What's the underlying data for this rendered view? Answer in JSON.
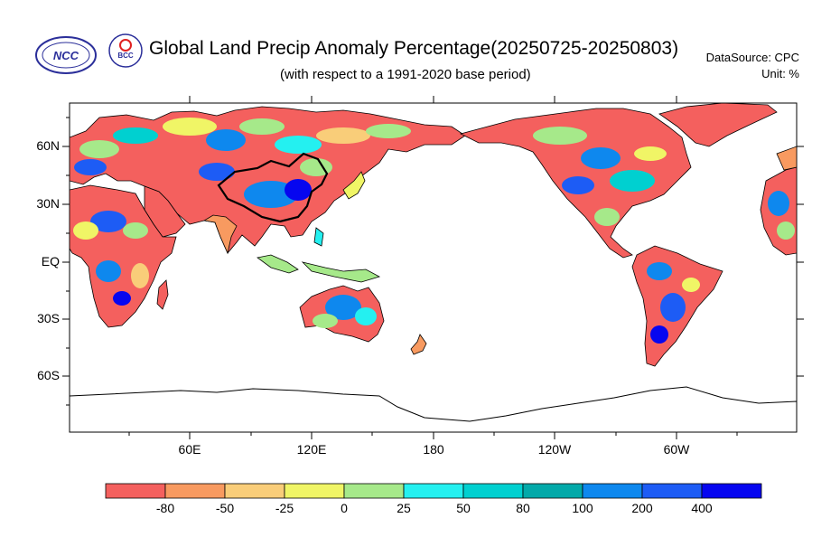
{
  "header": {
    "title": "Global Land Precip Anomaly Percentage(20250725-20250803)",
    "subtitle": "(with respect to a 1991-2020 base period)",
    "datasource": "DataSource:  CPC",
    "unit": "Unit:  %"
  },
  "logos": {
    "ncc_text": "NCC",
    "bcc_text": "BCC"
  },
  "axes": {
    "y_labels": [
      "60N",
      "30N",
      "EQ",
      "30S",
      "60S"
    ],
    "x_labels": [
      "60E",
      "120E",
      "180",
      "120W",
      "60W"
    ]
  },
  "colorbar": {
    "labels": [
      "-80",
      "-50",
      "-25",
      "0",
      "25",
      "50",
      "80",
      "100",
      "200",
      "400"
    ],
    "colors": [
      "#f4605e",
      "#f89a60",
      "#f9cd79",
      "#f0f566",
      "#a6e98a",
      "#24f0f0",
      "#00d0d0",
      "#02a9a9",
      "#0e88ee",
      "#1d5cf5",
      "#0606f0"
    ]
  },
  "colors": {
    "dry": "#f4605e",
    "wet": "#1d5cf5",
    "land_mixed": [
      "#f89a60",
      "#f9cd79",
      "#f0f566",
      "#a6e98a",
      "#24f0f0",
      "#00d0d0"
    ]
  }
}
